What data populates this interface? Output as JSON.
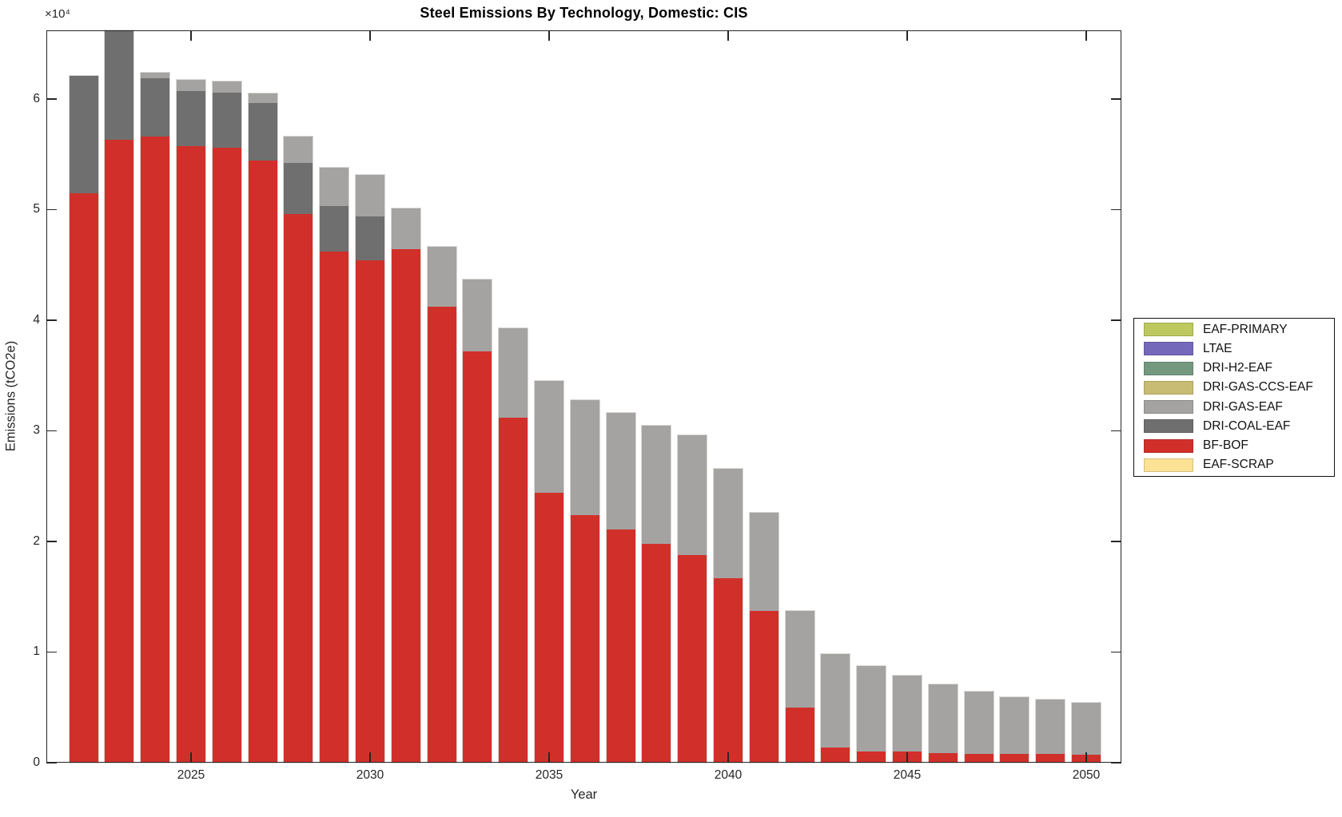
{
  "figure": {
    "title": "Steel Emissions By Technology, Domestic: CIS",
    "xlabel": "Year",
    "ylabel": "Emissions (tCO2e)",
    "y_axis_multiplier": "×10⁴"
  },
  "chart_data": {
    "type": "bar",
    "stacked": true,
    "title": "Steel Emissions By Technology, Domestic: CIS",
    "xlabel": "Year",
    "ylabel": "Emissions (tCO2e)",
    "unit_scale_label": "×10⁴",
    "unit_note": "series values are in units of 10^4 tCO2e",
    "grid": false,
    "legend_position": "outside-right",
    "x": [
      2022,
      2023,
      2024,
      2025,
      2026,
      2027,
      2028,
      2029,
      2030,
      2031,
      2032,
      2033,
      2034,
      2035,
      2036,
      2037,
      2038,
      2039,
      2040,
      2041,
      2042,
      2043,
      2044,
      2045,
      2046,
      2047,
      2048,
      2049,
      2050
    ],
    "x_ticks": [
      2025,
      2030,
      2035,
      2040,
      2045,
      2050
    ],
    "x_tick_labels": [
      "2025",
      "2030",
      "2035",
      "2040",
      "2045",
      "2050"
    ],
    "xlim": [
      2021,
      2051
    ],
    "y_ticks": [
      0,
      1,
      2,
      3,
      4,
      5,
      6
    ],
    "y_tick_labels": [
      "0",
      "1",
      "2",
      "3",
      "4",
      "5",
      "6"
    ],
    "ylim": [
      0,
      6.62
    ],
    "series_bottom_to_top": [
      {
        "name": "EAF-SCRAP",
        "color": "#FBE294",
        "values": [
          0,
          0,
          0,
          0,
          0,
          0,
          0,
          0,
          0,
          0,
          0,
          0,
          0,
          0,
          0,
          0,
          0,
          0,
          0,
          0,
          0,
          0,
          0,
          0,
          0,
          0,
          0,
          0,
          0
        ]
      },
      {
        "name": "BF-BOF",
        "color": "#D1302A",
        "values": [
          5.15,
          5.63,
          5.66,
          5.57,
          5.56,
          5.44,
          4.96,
          4.62,
          4.54,
          4.64,
          4.12,
          3.72,
          3.12,
          2.44,
          2.24,
          2.11,
          1.98,
          1.88,
          1.67,
          1.37,
          0.5,
          0.14,
          0.1,
          0.1,
          0.09,
          0.08,
          0.08,
          0.08,
          0.07
        ]
      },
      {
        "name": "DRI-COAL-EAF",
        "color": "#6F6F6F",
        "values": [
          1.06,
          0.99,
          0.53,
          0.5,
          0.5,
          0.52,
          0.46,
          0.41,
          0.4,
          0,
          0,
          0,
          0,
          0,
          0,
          0,
          0,
          0,
          0,
          0,
          0,
          0,
          0,
          0,
          0,
          0,
          0,
          0,
          0
        ]
      },
      {
        "name": "DRI-GAS-EAF",
        "color": "#A5A3A1",
        "values": [
          0,
          0,
          0.05,
          0.1,
          0.1,
          0.09,
          0.24,
          0.35,
          0.37,
          0.37,
          0.54,
          0.65,
          0.81,
          1.01,
          1.04,
          1.05,
          1.07,
          1.08,
          0.99,
          0.89,
          0.87,
          0.84,
          0.77,
          0.69,
          0.62,
          0.56,
          0.51,
          0.49,
          0.47
        ]
      },
      {
        "name": "DRI-GAS-CCS-EAF",
        "color": "#C8BC74",
        "values": [
          0,
          0,
          0,
          0,
          0,
          0,
          0,
          0,
          0,
          0,
          0,
          0,
          0,
          0,
          0,
          0,
          0,
          0,
          0,
          0,
          0,
          0,
          0,
          0,
          0,
          0,
          0,
          0,
          0
        ]
      },
      {
        "name": "DRI-H2-EAF",
        "color": "#74997E",
        "values": [
          0,
          0,
          0,
          0,
          0,
          0,
          0,
          0,
          0,
          0,
          0,
          0,
          0,
          0,
          0,
          0,
          0,
          0,
          0,
          0,
          0,
          0,
          0,
          0,
          0,
          0,
          0,
          0,
          0
        ]
      },
      {
        "name": "LTAE",
        "color": "#7468BB",
        "values": [
          0,
          0,
          0,
          0,
          0,
          0,
          0,
          0,
          0,
          0,
          0,
          0,
          0,
          0,
          0,
          0,
          0,
          0,
          0,
          0,
          0,
          0,
          0,
          0,
          0,
          0,
          0,
          0,
          0
        ]
      },
      {
        "name": "EAF-PRIMARY",
        "color": "#BDC85F",
        "values": [
          0,
          0,
          0,
          0,
          0,
          0,
          0,
          0,
          0,
          0,
          0,
          0,
          0,
          0,
          0,
          0,
          0,
          0,
          0,
          0,
          0,
          0,
          0,
          0,
          0,
          0,
          0,
          0,
          0
        ]
      }
    ],
    "legend": [
      {
        "label": "EAF-PRIMARY",
        "color": "#BDC85F"
      },
      {
        "label": "LTAE",
        "color": "#7468BB"
      },
      {
        "label": "DRI-H2-EAF",
        "color": "#74997E"
      },
      {
        "label": "DRI-GAS-CCS-EAF",
        "color": "#C8BC74"
      },
      {
        "label": "DRI-GAS-EAF",
        "color": "#A5A3A1"
      },
      {
        "label": "DRI-COAL-EAF",
        "color": "#6F6F6F"
      },
      {
        "label": "BF-BOF",
        "color": "#D1302A"
      },
      {
        "label": "EAF-SCRAP",
        "color": "#FBE294"
      }
    ]
  }
}
